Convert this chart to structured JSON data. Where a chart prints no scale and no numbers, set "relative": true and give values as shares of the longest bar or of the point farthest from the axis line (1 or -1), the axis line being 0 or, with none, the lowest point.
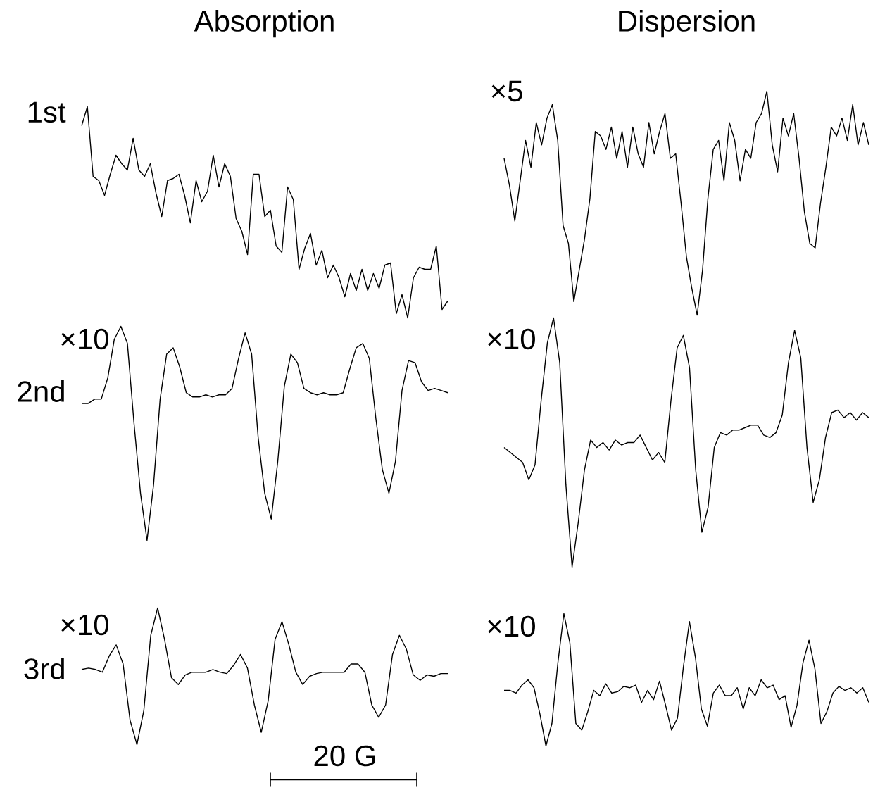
{
  "chart_data": [
    {
      "type": "line",
      "relative": true,
      "color": "#000000",
      "title": "Absorption",
      "ylabel": "1st",
      "categories": [
        null,
        null,
        null,
        null,
        null,
        null,
        null,
        null,
        null,
        null,
        null,
        null,
        null,
        null,
        null,
        null,
        null,
        null,
        null,
        null,
        null,
        null,
        null,
        null,
        null,
        null,
        null,
        null,
        null,
        null,
        null,
        null,
        null,
        null,
        null,
        null,
        null,
        null,
        null,
        null,
        null,
        null,
        null,
        null,
        null,
        null,
        null,
        null,
        null,
        null,
        null,
        null,
        null,
        null,
        null,
        null,
        null,
        null,
        null,
        null,
        null,
        null,
        null,
        null,
        null
      ],
      "values": [
        0.91,
        1.0,
        0.67,
        0.65,
        0.58,
        0.68,
        0.77,
        0.73,
        0.7,
        0.85,
        0.7,
        0.67,
        0.73,
        0.59,
        0.48,
        0.65,
        0.66,
        0.68,
        0.58,
        0.45,
        0.65,
        0.55,
        0.6,
        0.77,
        0.62,
        0.73,
        0.67,
        0.47,
        0.41,
        0.3,
        0.68,
        0.68,
        0.48,
        0.51,
        0.34,
        0.31,
        0.62,
        0.56,
        0.23,
        0.33,
        0.4,
        0.25,
        0.32,
        0.19,
        0.25,
        0.19,
        0.1,
        0.21,
        0.13,
        0.23,
        0.13,
        0.21,
        0.14,
        0.25,
        0.26,
        0.02,
        0.11,
        0,
        0.19,
        0.24,
        0.23,
        0.23,
        0.34,
        0.04,
        0.08
      ]
    },
    {
      "type": "line",
      "relative": true,
      "color": "#000000",
      "title": "Dispersion",
      "annotations": [
        "×5"
      ],
      "categories": [
        null,
        null,
        null,
        null,
        null,
        null,
        null,
        null,
        null,
        null,
        null,
        null,
        null,
        null,
        null,
        null,
        null,
        null,
        null,
        null,
        null,
        null,
        null,
        null,
        null,
        null,
        null,
        null,
        null,
        null,
        null,
        null,
        null,
        null,
        null,
        null,
        null,
        null,
        null,
        null,
        null,
        null,
        null,
        null,
        null,
        null,
        null,
        null,
        null,
        null,
        null,
        null,
        null,
        null,
        null,
        null,
        null,
        null,
        null,
        null,
        null,
        null,
        null,
        null,
        null,
        null,
        null,
        null,
        null
      ],
      "values": [
        0.7,
        0.58,
        0.42,
        0.6,
        0.78,
        0.66,
        0.86,
        0.76,
        0.88,
        0.94,
        0.78,
        0.4,
        0.32,
        0.06,
        0.2,
        0.34,
        0.52,
        0.82,
        0.8,
        0.74,
        0.84,
        0.7,
        0.82,
        0.66,
        0.84,
        0.72,
        0.66,
        0.86,
        0.72,
        0.82,
        0.9,
        0.7,
        0.72,
        0.5,
        0.26,
        0.12,
        0,
        0.2,
        0.52,
        0.74,
        0.78,
        0.6,
        0.86,
        0.78,
        0.6,
        0.74,
        0.7,
        0.86,
        0.9,
        1.0,
        0.76,
        0.64,
        0.88,
        0.8,
        0.9,
        0.7,
        0.46,
        0.32,
        0.3,
        0.5,
        0.66,
        0.84,
        0.8,
        0.88,
        0.78,
        0.94,
        0.76,
        0.86,
        0.76
      ]
    },
    {
      "type": "line",
      "relative": true,
      "color": "#000000",
      "ylabel": "2nd",
      "annotations": [
        "×10"
      ],
      "categories": [
        null,
        null,
        null,
        null,
        null,
        null,
        null,
        null,
        null,
        null,
        null,
        null,
        null,
        null,
        null,
        null,
        null,
        null,
        null,
        null,
        null,
        null,
        null,
        null,
        null,
        null,
        null,
        null,
        null,
        null,
        null,
        null,
        null,
        null,
        null,
        null,
        null,
        null,
        null,
        null,
        null,
        null,
        null,
        null,
        null,
        null,
        null,
        null,
        null,
        null,
        null,
        null,
        null,
        null,
        null,
        null,
        null
      ],
      "values": [
        0.64,
        0.64,
        0.66,
        0.66,
        0.76,
        0.94,
        1.0,
        0.92,
        0.55,
        0.22,
        0,
        0.26,
        0.66,
        0.87,
        0.9,
        0.81,
        0.69,
        0.67,
        0.67,
        0.68,
        0.67,
        0.68,
        0.68,
        0.71,
        0.85,
        0.97,
        0.87,
        0.48,
        0.22,
        0.1,
        0.37,
        0.72,
        0.87,
        0.83,
        0.71,
        0.69,
        0.68,
        0.69,
        0.68,
        0.68,
        0.69,
        0.8,
        0.9,
        0.92,
        0.85,
        0.57,
        0.33,
        0.22,
        0.37,
        0.7,
        0.84,
        0.83,
        0.74,
        0.7,
        0.71,
        0.7,
        0.69
      ]
    },
    {
      "type": "line",
      "relative": true,
      "color": "#000000",
      "annotations": [
        "×10"
      ],
      "categories": [
        null,
        null,
        null,
        null,
        null,
        null,
        null,
        null,
        null,
        null,
        null,
        null,
        null,
        null,
        null,
        null,
        null,
        null,
        null,
        null,
        null,
        null,
        null,
        null,
        null,
        null,
        null,
        null,
        null,
        null,
        null,
        null,
        null,
        null,
        null,
        null,
        null,
        null,
        null,
        null,
        null,
        null,
        null,
        null,
        null,
        null,
        null,
        null,
        null,
        null,
        null,
        null,
        null,
        null,
        null,
        null,
        null,
        null,
        null,
        null
      ],
      "values": [
        0.48,
        0.46,
        0.44,
        0.42,
        0.35,
        0.41,
        0.67,
        0.9,
        1.0,
        0.82,
        0.33,
        0,
        0.18,
        0.39,
        0.51,
        0.48,
        0.5,
        0.47,
        0.51,
        0.49,
        0.5,
        0.5,
        0.53,
        0.48,
        0.43,
        0.46,
        0.42,
        0.67,
        0.88,
        0.93,
        0.8,
        0.39,
        0.14,
        0.24,
        0.48,
        0.54,
        0.53,
        0.55,
        0.55,
        0.56,
        0.57,
        0.57,
        0.53,
        0.52,
        0.54,
        0.61,
        0.82,
        0.95,
        0.84,
        0.48,
        0.26,
        0.35,
        0.52,
        0.62,
        0.63,
        0.6,
        0.62,
        0.59,
        0.62,
        0.6
      ]
    },
    {
      "type": "line",
      "relative": true,
      "color": "#000000",
      "ylabel": "3rd",
      "annotations": [
        "×10",
        "20 G"
      ],
      "categories": [
        null,
        null,
        null,
        null,
        null,
        null,
        null,
        null,
        null,
        null,
        null,
        null,
        null,
        null,
        null,
        null,
        null,
        null,
        null,
        null,
        null,
        null,
        null,
        null,
        null,
        null,
        null,
        null,
        null,
        null,
        null,
        null,
        null,
        null,
        null,
        null,
        null,
        null,
        null,
        null,
        null,
        null,
        null,
        null,
        null,
        null,
        null,
        null,
        null,
        null,
        null,
        null,
        null,
        null
      ],
      "values": [
        0.55,
        0.56,
        0.55,
        0.53,
        0.65,
        0.73,
        0.59,
        0.18,
        0,
        0.25,
        0.8,
        1.0,
        0.77,
        0.49,
        0.44,
        0.51,
        0.53,
        0.53,
        0.53,
        0.55,
        0.53,
        0.52,
        0.58,
        0.66,
        0.56,
        0.29,
        0.09,
        0.32,
        0.77,
        0.9,
        0.73,
        0.53,
        0.44,
        0.5,
        0.52,
        0.53,
        0.53,
        0.53,
        0.53,
        0.59,
        0.59,
        0.53,
        0.29,
        0.2,
        0.29,
        0.66,
        0.8,
        0.7,
        0.51,
        0.47,
        0.51,
        0.5,
        0.52,
        0.52
      ]
    },
    {
      "type": "line",
      "relative": true,
      "color": "#000000",
      "annotations": [
        "×10"
      ],
      "categories": [
        null,
        null,
        null,
        null,
        null,
        null,
        null,
        null,
        null,
        null,
        null,
        null,
        null,
        null,
        null,
        null,
        null,
        null,
        null,
        null,
        null,
        null,
        null,
        null,
        null,
        null,
        null,
        null,
        null,
        null,
        null,
        null,
        null,
        null,
        null,
        null,
        null,
        null,
        null,
        null,
        null,
        null,
        null,
        null,
        null,
        null,
        null,
        null,
        null,
        null,
        null,
        null,
        null,
        null,
        null,
        null,
        null,
        null,
        null,
        null,
        null,
        null
      ],
      "values": [
        0.42,
        0.42,
        0.4,
        0.46,
        0.5,
        0.44,
        0.24,
        0,
        0.17,
        0.63,
        1.0,
        0.78,
        0.17,
        0.12,
        0.26,
        0.42,
        0.38,
        0.47,
        0.4,
        0.41,
        0.45,
        0.44,
        0.46,
        0.33,
        0.42,
        0.35,
        0.49,
        0.31,
        0.12,
        0.21,
        0.6,
        0.94,
        0.67,
        0.28,
        0.15,
        0.4,
        0.46,
        0.38,
        0.38,
        0.44,
        0.28,
        0.44,
        0.38,
        0.5,
        0.44,
        0.46,
        0.35,
        0.38,
        0.14,
        0.31,
        0.63,
        0.8,
        0.58,
        0.17,
        0.26,
        0.4,
        0.45,
        0.42,
        0.44,
        0.4,
        0.44,
        0.33
      ]
    }
  ]
}
